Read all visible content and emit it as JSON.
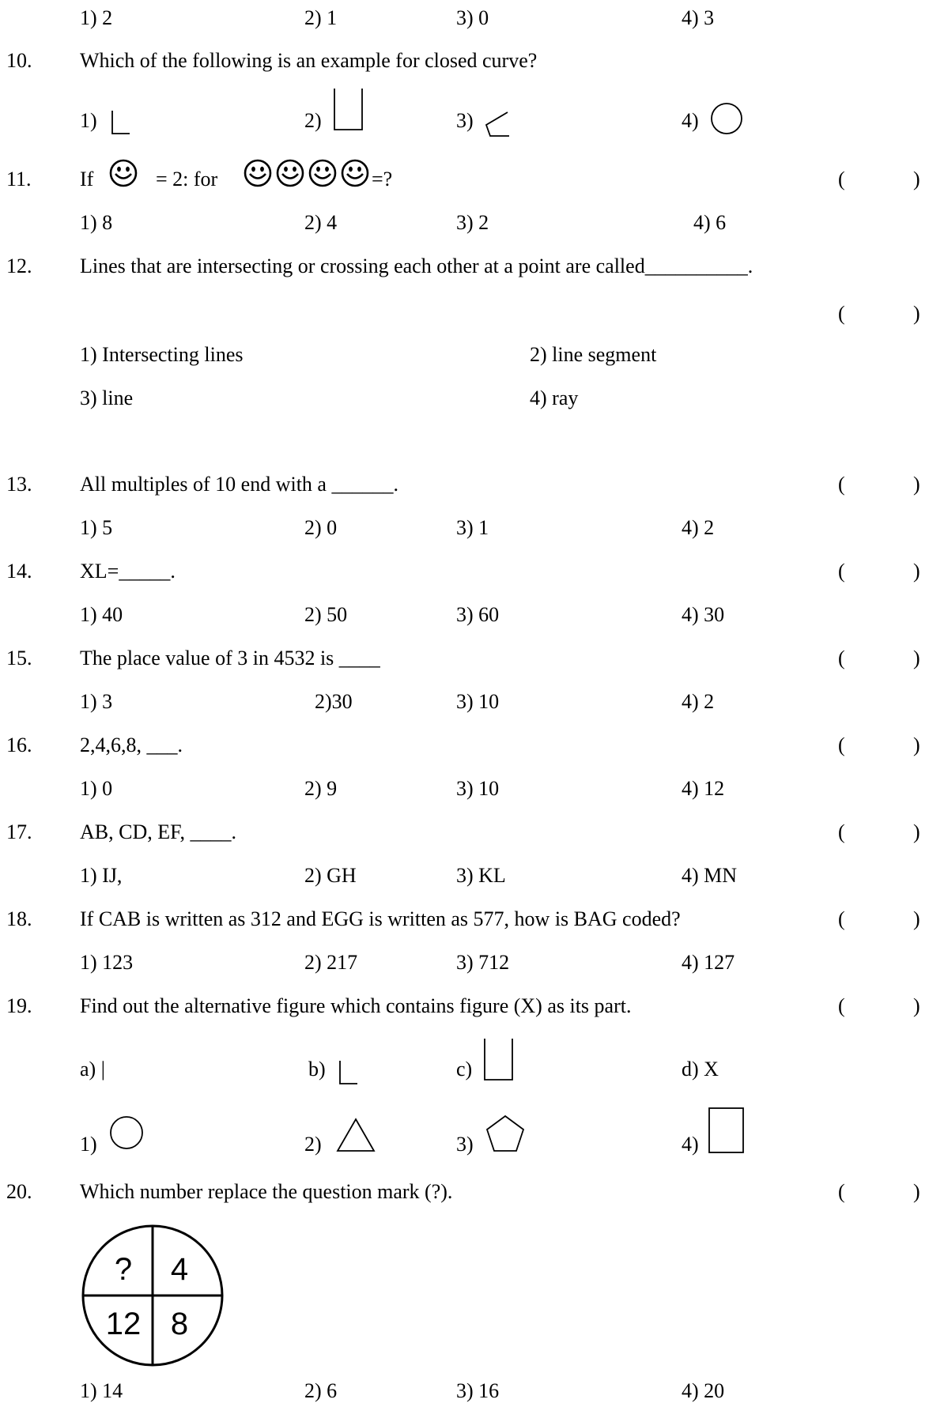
{
  "q9": {
    "options": [
      "1)  2",
      "2) 1",
      "3) 0",
      "4) 3"
    ]
  },
  "q10": {
    "number": "10.",
    "text": "Which of the following is an example for closed curve?",
    "options": [
      "1)",
      "2)",
      "3)",
      "4)"
    ]
  },
  "q11": {
    "number": "11.",
    "if": "If",
    "eq": "= 2: for",
    "tail": "=?",
    "options": [
      "1)  8",
      "2) 4",
      "3) 2",
      "4) 6"
    ]
  },
  "q12": {
    "number": "12.",
    "text": "Lines that are intersecting or crossing each other at a point are called__________.",
    "options": [
      "1) Intersecting lines",
      "2) line segment",
      "3) line",
      "4)  ray"
    ]
  },
  "q13": {
    "number": "13.",
    "text": "All multiples of 10 end with a ______.",
    "options": [
      "1) 5",
      "2) 0",
      "3) 1",
      "4) 2"
    ]
  },
  "q14": {
    "number": "14.",
    "text": "XL=_____.",
    "options": [
      "1) 40",
      "2) 50",
      "3) 60",
      "4) 30"
    ]
  },
  "q15": {
    "number": "15.",
    "text": "The place value of 3 in 4532 is ____",
    "options": [
      "1) 3",
      "2)30",
      "3) 10",
      "4) 2"
    ]
  },
  "q16": {
    "number": "16.",
    "text": "2,4,6,8, ___.",
    "options": [
      "1) 0",
      "2) 9",
      "3) 10",
      "4) 12"
    ]
  },
  "q17": {
    "number": "17.",
    "text": "AB, CD, EF, ____.",
    "options": [
      "1) IJ,",
      "2) GH",
      "3) KL",
      "4) MN"
    ]
  },
  "q18": {
    "number": "18.",
    "text": "If CAB is written as 312 and EGG is written as 577, how is BAG coded?",
    "options": [
      "1) 123",
      "2) 217",
      "3) 712",
      "4) 127"
    ]
  },
  "q19": {
    "number": "19.",
    "text": "Find out the alternative figure which contains figure (X) as  its part.",
    "figs": [
      "a) |",
      "b)",
      "c)",
      "d) X"
    ],
    "options": [
      "1)",
      "2)",
      "3)",
      "4)"
    ]
  },
  "q20": {
    "number": "20.",
    "text": "Which number replace the question mark (?).",
    "circle": [
      "?",
      "4",
      "12",
      "8"
    ],
    "options": [
      "1) 14",
      "2) 6",
      "3) 16",
      "4) 20"
    ]
  },
  "paren_open": "(",
  "paren_close": ")"
}
